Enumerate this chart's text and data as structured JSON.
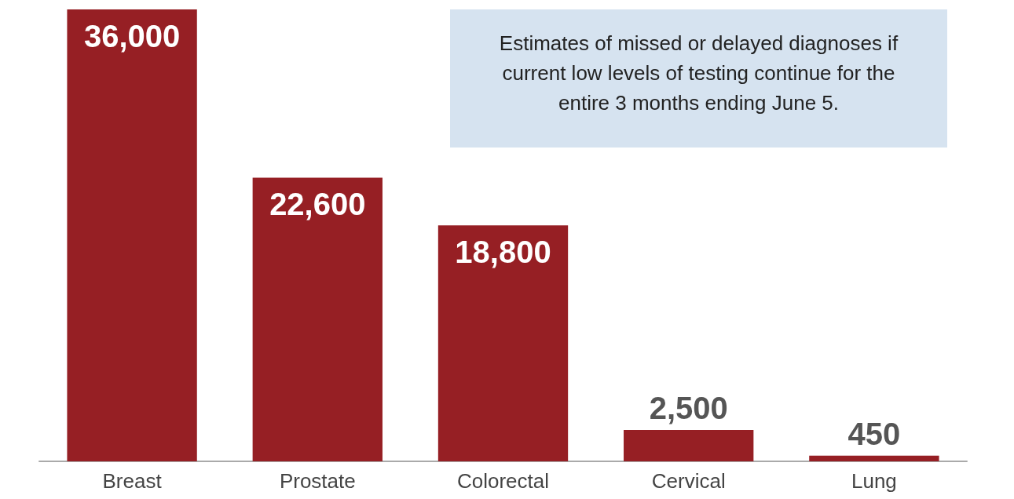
{
  "chart_data": {
    "type": "bar",
    "categories": [
      "Breast",
      "Prostate",
      "Colorectal",
      "Cervical",
      "Lung"
    ],
    "values": [
      36000,
      22600,
      18800,
      2500,
      450
    ],
    "value_labels": [
      "36,000",
      "22,600",
      "18,800",
      "2,500",
      "450"
    ],
    "color": "#961f24",
    "annotations": [
      "Estimates of missed or delayed diagnoses if current low levels of testing continue for the entire 3 months ending June 5."
    ]
  }
}
